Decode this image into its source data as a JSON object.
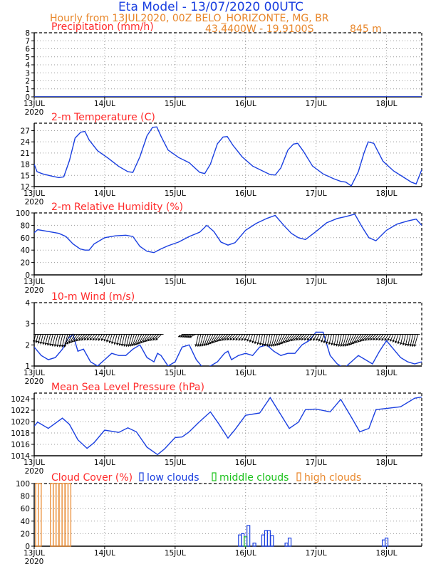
{
  "header": {
    "title": "Eta Model - 13/07/2020 00UTC",
    "subtitle": "Hourly from 13JUL2020, 00Z  BELO_HORIZONTE, MG, BR",
    "location": "43.4400W - 19.9100S",
    "elevation": "845  m"
  },
  "colors": {
    "title": "#1a3fe0",
    "subtitle": "#e8862a",
    "panel_title": "#ff2a2a",
    "line": "#1a3fe0",
    "low": "#1a3fe0",
    "middle": "#19c119",
    "high": "#e8862a",
    "grid": "#9a9a9a"
  },
  "x_axis": {
    "ticks": [
      {
        "day": 0,
        "label": "13JUL"
      },
      {
        "day": 1,
        "label": "14JUL"
      },
      {
        "day": 2,
        "label": "15JUL"
      },
      {
        "day": 3,
        "label": "16JUL"
      },
      {
        "day": 4,
        "label": "17JUL"
      },
      {
        "day": 5,
        "label": "18JUL"
      }
    ],
    "year": "2020",
    "range_days": [
      0,
      5.5
    ]
  },
  "chart_data": [
    {
      "type": "line",
      "title": "Precipitation (mm/h)",
      "ylim": [
        0,
        8
      ],
      "yticks": [
        0,
        1,
        2,
        3,
        4,
        5,
        6,
        7,
        8
      ],
      "x": [
        0,
        5.5
      ],
      "values": [
        0,
        0
      ]
    },
    {
      "type": "line",
      "title": "2-m Temperature (C)",
      "ylim": [
        12,
        29
      ],
      "yticks": [
        12,
        15,
        18,
        21,
        24,
        27
      ],
      "x": [
        0,
        0.04,
        0.12,
        0.25,
        0.35,
        0.42,
        0.5,
        0.58,
        0.66,
        0.72,
        0.78,
        0.9,
        1.05,
        1.2,
        1.33,
        1.4,
        1.5,
        1.6,
        1.68,
        1.74,
        1.8,
        1.9,
        2.05,
        2.2,
        2.35,
        2.42,
        2.5,
        2.6,
        2.68,
        2.74,
        2.82,
        2.95,
        3.1,
        3.25,
        3.35,
        3.42,
        3.5,
        3.6,
        3.68,
        3.74,
        3.82,
        3.95,
        4.1,
        4.25,
        4.35,
        4.42,
        4.5,
        4.6,
        4.68,
        4.74,
        4.82,
        4.95,
        5.1,
        5.25,
        5.35,
        5.42,
        5.5
      ],
      "values": [
        18,
        16,
        15.4,
        14.8,
        14.4,
        14.6,
        19,
        25,
        26.6,
        26.8,
        24.5,
        21.6,
        19.6,
        17.4,
        16,
        15.8,
        20,
        25.6,
        27.9,
        28,
        25.5,
        21.8,
        19.8,
        18.4,
        15.8,
        15.5,
        18,
        23.5,
        25.3,
        25.4,
        23.1,
        20,
        17.5,
        16.1,
        15.2,
        15.1,
        17,
        21.8,
        23.4,
        23.6,
        21.5,
        17.5,
        15.4,
        14.1,
        13.4,
        13.2,
        12.2,
        16,
        21,
        24,
        23.6,
        18.8,
        16.2,
        14.4,
        13.2,
        12.7,
        16.5
      ]
    },
    {
      "type": "line",
      "title": "2-m Relative Humidity (%)",
      "ylim": [
        0,
        100
      ],
      "yticks": [
        0,
        20,
        40,
        60,
        80,
        100
      ],
      "x": [
        0,
        0.05,
        0.2,
        0.35,
        0.45,
        0.55,
        0.65,
        0.72,
        0.78,
        0.85,
        1.0,
        1.15,
        1.3,
        1.4,
        1.5,
        1.6,
        1.7,
        1.8,
        1.9,
        2.05,
        2.2,
        2.35,
        2.45,
        2.55,
        2.65,
        2.75,
        2.85,
        3.0,
        3.15,
        3.3,
        3.42,
        3.55,
        3.65,
        3.75,
        3.85,
        4.0,
        4.15,
        4.3,
        4.42,
        4.55,
        4.65,
        4.75,
        4.85,
        5.0,
        5.15,
        5.3,
        5.42,
        5.5
      ],
      "values": [
        68,
        73,
        70,
        67,
        62,
        50,
        42,
        40,
        40,
        50,
        60,
        63,
        64,
        62,
        46,
        38,
        36,
        42,
        47,
        53,
        62,
        69,
        80,
        70,
        53,
        48,
        52,
        72,
        83,
        91,
        96,
        79,
        67,
        60,
        57,
        70,
        84,
        91,
        94,
        98,
        78,
        60,
        55,
        72,
        82,
        87,
        90,
        80
      ]
    },
    {
      "type": "line",
      "title": "10-m Wind (m/s)",
      "ylim": [
        1,
        4
      ],
      "yticks": [
        1,
        2,
        3,
        4
      ],
      "x": [
        0,
        0.1,
        0.2,
        0.3,
        0.4,
        0.48,
        0.55,
        0.62,
        0.7,
        0.8,
        0.9,
        1.0,
        1.1,
        1.2,
        1.3,
        1.4,
        1.5,
        1.6,
        1.7,
        1.75,
        1.8,
        1.9,
        2.0,
        2.1,
        2.2,
        2.3,
        2.4,
        2.5,
        2.6,
        2.7,
        2.75,
        2.8,
        2.9,
        3.0,
        3.1,
        3.2,
        3.3,
        3.4,
        3.5,
        3.6,
        3.7,
        3.8,
        3.9,
        4.0,
        4.1,
        4.2,
        4.3,
        4.4,
        4.5,
        4.6,
        4.7,
        4.8,
        4.9,
        5.0,
        5.1,
        5.2,
        5.3,
        5.4,
        5.5
      ],
      "values": [
        1.9,
        1.5,
        1.3,
        1.4,
        1.8,
        2.3,
        2.5,
        1.7,
        1.8,
        1.2,
        1.0,
        1.3,
        1.6,
        1.5,
        1.5,
        1.8,
        2.0,
        1.4,
        1.2,
        1.6,
        1.5,
        1.0,
        1.2,
        1.9,
        2.0,
        1.3,
        0.9,
        1.0,
        1.2,
        1.6,
        1.7,
        1.3,
        1.5,
        1.6,
        1.5,
        1.9,
        2.0,
        1.7,
        1.5,
        1.6,
        1.6,
        2.0,
        2.2,
        2.6,
        2.6,
        1.5,
        1.1,
        0.9,
        1.2,
        1.5,
        1.3,
        1.1,
        1.7,
        2.2,
        1.8,
        1.4,
        1.2,
        1.1,
        1.2
      ]
    },
    {
      "type": "line",
      "title": "Mean Sea Level Pressure (hPa)",
      "ylim": [
        1014,
        1025
      ],
      "yticks": [
        1014,
        1016,
        1018,
        1020,
        1022,
        1024
      ],
      "x": [
        0,
        0.05,
        0.2,
        0.4,
        0.5,
        0.62,
        0.75,
        0.85,
        1.0,
        1.2,
        1.33,
        1.45,
        1.6,
        1.75,
        1.85,
        2.0,
        2.1,
        2.2,
        2.33,
        2.5,
        2.62,
        2.75,
        2.85,
        3.0,
        3.2,
        3.35,
        3.5,
        3.62,
        3.75,
        3.85,
        4.0,
        4.2,
        4.35,
        4.5,
        4.62,
        4.75,
        4.85,
        5.0,
        5.2,
        5.4,
        5.5
      ],
      "values": [
        1019.2,
        1019.9,
        1018.8,
        1020.6,
        1019.5,
        1016.8,
        1015.3,
        1016.3,
        1018.5,
        1018.1,
        1018.9,
        1018.2,
        1015.5,
        1014.2,
        1015.2,
        1017.2,
        1017.3,
        1018.2,
        1019.8,
        1021.7,
        1019.6,
        1017.1,
        1018.6,
        1021.1,
        1021.5,
        1024.2,
        1021.2,
        1018.8,
        1019.9,
        1022.1,
        1022.2,
        1021.7,
        1023.9,
        1020.8,
        1018.2,
        1018.8,
        1022.1,
        1022.3,
        1022.6,
        1024.1,
        1024.3
      ]
    },
    {
      "type": "bar",
      "title": "Cloud Cover (%)",
      "ylim": [
        0,
        100
      ],
      "yticks": [
        0,
        20,
        40,
        60,
        80,
        100
      ],
      "legend": {
        "low": "low clouds",
        "middle": "middle clouds",
        "high": "high clouds"
      },
      "bars": [
        {
          "day": 0.04,
          "type": "high",
          "value": 100
        },
        {
          "day": 0.08,
          "type": "high",
          "value": 100
        },
        {
          "day": 0.25,
          "type": "high",
          "value": 100
        },
        {
          "day": 0.29,
          "type": "high",
          "value": 100
        },
        {
          "day": 0.33,
          "type": "high",
          "value": 100
        },
        {
          "day": 0.375,
          "type": "high",
          "value": 100
        },
        {
          "day": 0.415,
          "type": "high",
          "value": 100
        },
        {
          "day": 0.46,
          "type": "high",
          "value": 100
        },
        {
          "day": 0.5,
          "type": "high",
          "value": 100
        },
        {
          "day": 2.92,
          "type": "low",
          "value": 18
        },
        {
          "day": 2.96,
          "type": "low",
          "value": 20
        },
        {
          "day": 3.0,
          "type": "middle",
          "value": 15
        },
        {
          "day": 3.04,
          "type": "low",
          "value": 33
        },
        {
          "day": 3.125,
          "type": "low",
          "value": 5
        },
        {
          "day": 3.25,
          "type": "low",
          "value": 18
        },
        {
          "day": 3.29,
          "type": "low",
          "value": 25
        },
        {
          "day": 3.33,
          "type": "low",
          "value": 25
        },
        {
          "day": 3.375,
          "type": "low",
          "value": 17
        },
        {
          "day": 3.58,
          "type": "low",
          "value": 5
        },
        {
          "day": 3.625,
          "type": "low",
          "value": 13
        },
        {
          "day": 4.96,
          "type": "low",
          "value": 10
        },
        {
          "day": 5.0,
          "type": "low",
          "value": 13
        }
      ]
    }
  ]
}
